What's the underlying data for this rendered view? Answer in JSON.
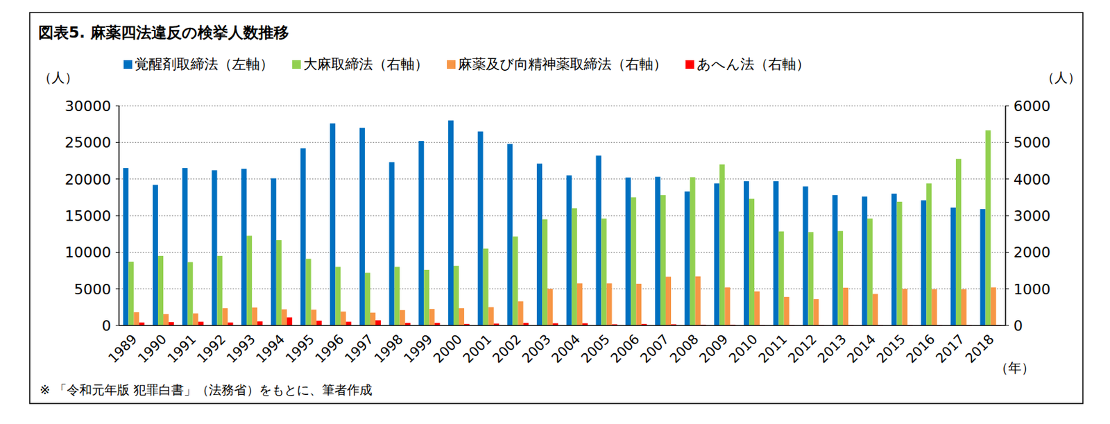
{
  "chart_data": {
    "type": "bar",
    "title": "図表5. 麻薬四法違反の検挙人数推移",
    "ylabel": "（人）",
    "y2label": "（人）",
    "xlabel": "（年）",
    "note": "※ 「令和元年版 犯罪白書」（法務省）をもとに、筆者作成",
    "categories": [
      "1989",
      "1990",
      "1991",
      "1992",
      "1993",
      "1994",
      "1995",
      "1996",
      "1997",
      "1998",
      "1999",
      "2000",
      "2001",
      "2002",
      "2003",
      "2004",
      "2005",
      "2006",
      "2007",
      "2008",
      "2009",
      "2010",
      "2011",
      "2012",
      "2013",
      "2014",
      "2015",
      "2016",
      "2017",
      "2018"
    ],
    "series": [
      {
        "name": "覚醒剤取締法（左軸）",
        "color": "#0070C0",
        "axis": "y",
        "values": [
          21500,
          19200,
          21500,
          21200,
          21400,
          20100,
          24200,
          27600,
          27000,
          22300,
          25200,
          28000,
          26500,
          24800,
          22100,
          20500,
          23200,
          20200,
          20300,
          18300,
          19400,
          19700,
          19700,
          19000,
          17800,
          17600,
          18000,
          17100,
          16100,
          15900
        ]
      },
      {
        "name": "大麻取締法（右軸）",
        "color": "#92D050",
        "axis": "y2",
        "values": [
          1740,
          1900,
          1730,
          1900,
          2450,
          2330,
          1820,
          1600,
          1440,
          1600,
          1520,
          1630,
          2100,
          2430,
          2900,
          3200,
          2920,
          3500,
          3560,
          4050,
          4400,
          3460,
          2570,
          2550,
          2580,
          2920,
          3380,
          3880,
          4550,
          5330
        ]
      },
      {
        "name": "麻薬及び向精神薬取締法（右軸）",
        "color": "#F79646",
        "axis": "y2",
        "values": [
          360,
          310,
          330,
          470,
          490,
          440,
          430,
          380,
          350,
          420,
          450,
          470,
          500,
          660,
          1000,
          1150,
          1150,
          1140,
          1330,
          1340,
          1040,
          930,
          780,
          720,
          1030,
          860,
          1000,
          990,
          990,
          1040
        ]
      },
      {
        "name": "あへん法（右軸）",
        "color": "#FF0000",
        "axis": "y2",
        "values": [
          80,
          90,
          100,
          80,
          110,
          220,
          130,
          100,
          140,
          70,
          70,
          40,
          50,
          70,
          60,
          60,
          30,
          40,
          30,
          20,
          20,
          10,
          10,
          10,
          10,
          10,
          10,
          10,
          10,
          10
        ]
      }
    ],
    "ylim": [
      0,
      30000
    ],
    "yticks": [
      0,
      5000,
      10000,
      15000,
      20000,
      25000,
      30000
    ],
    "y2lim": [
      0,
      6000
    ],
    "y2ticks": [
      0,
      1000,
      2000,
      3000,
      4000,
      5000,
      6000
    ],
    "grid": true,
    "legend": "top"
  }
}
